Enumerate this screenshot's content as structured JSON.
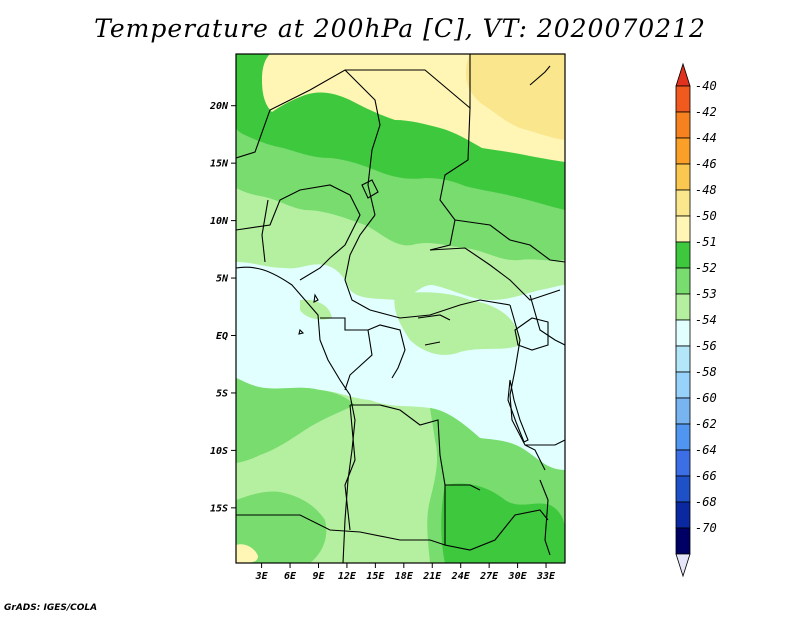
{
  "title": "Temperature at 200hPa [C], VT: 2020070212",
  "footer": "GrADS: IGES/COLA",
  "lat_ticks": [
    {
      "label": "20N",
      "lat": 20
    },
    {
      "label": "15N",
      "lat": 15
    },
    {
      "label": "10N",
      "lat": 10
    },
    {
      "label": "5N",
      "lat": 5
    },
    {
      "label": "EQ",
      "lat": 0
    },
    {
      "label": "5S",
      "lat": -5
    },
    {
      "label": "10S",
      "lat": -10
    },
    {
      "label": "15S",
      "lat": -15
    }
  ],
  "lon_ticks": [
    {
      "label": "3E",
      "lon": 3
    },
    {
      "label": "6E",
      "lon": 6
    },
    {
      "label": "9E",
      "lon": 9
    },
    {
      "label": "12E",
      "lon": 12
    },
    {
      "label": "15E",
      "lon": 15
    },
    {
      "label": "18E",
      "lon": 18
    },
    {
      "label": "21E",
      "lon": 21
    },
    {
      "label": "24E",
      "lon": 24
    },
    {
      "label": "27E",
      "lon": 27
    },
    {
      "label": "30E",
      "lon": 30
    },
    {
      "label": "33E",
      "lon": 33
    }
  ],
  "lon_range": [
    0.3,
    35
  ],
  "lat_range": [
    -19.8,
    24.5
  ],
  "legend": [
    {
      "label": "-40",
      "color": "#e0321e"
    },
    {
      "label": "-42",
      "color": "#f05a1e"
    },
    {
      "label": "-44",
      "color": "#f5821e"
    },
    {
      "label": "-46",
      "color": "#faa028"
    },
    {
      "label": "-48",
      "color": "#fac850"
    },
    {
      "label": "-50",
      "color": "#fae68c"
    },
    {
      "label": "-51",
      "color": "#fff5b4"
    },
    {
      "label": "-52",
      "color": "#3ec83e"
    },
    {
      "label": "-53",
      "color": "#78dc6e"
    },
    {
      "label": "-54",
      "color": "#b4f0a0"
    },
    {
      "label": "-56",
      "color": "#e1ffff"
    },
    {
      "label": "-58",
      "color": "#b4e6fa"
    },
    {
      "label": "-60",
      "color": "#96d2fa"
    },
    {
      "label": "-62",
      "color": "#78b4f0"
    },
    {
      "label": "-64",
      "color": "#5096f0"
    },
    {
      "label": "-66",
      "color": "#3c6ee6"
    },
    {
      "label": "-68",
      "color": "#1e50c8"
    },
    {
      "label": "-70",
      "color": "#0a28a0"
    }
  ],
  "legend_bottom_color": "#000064",
  "legend_min_arrow_color": "#e6e6fa"
}
